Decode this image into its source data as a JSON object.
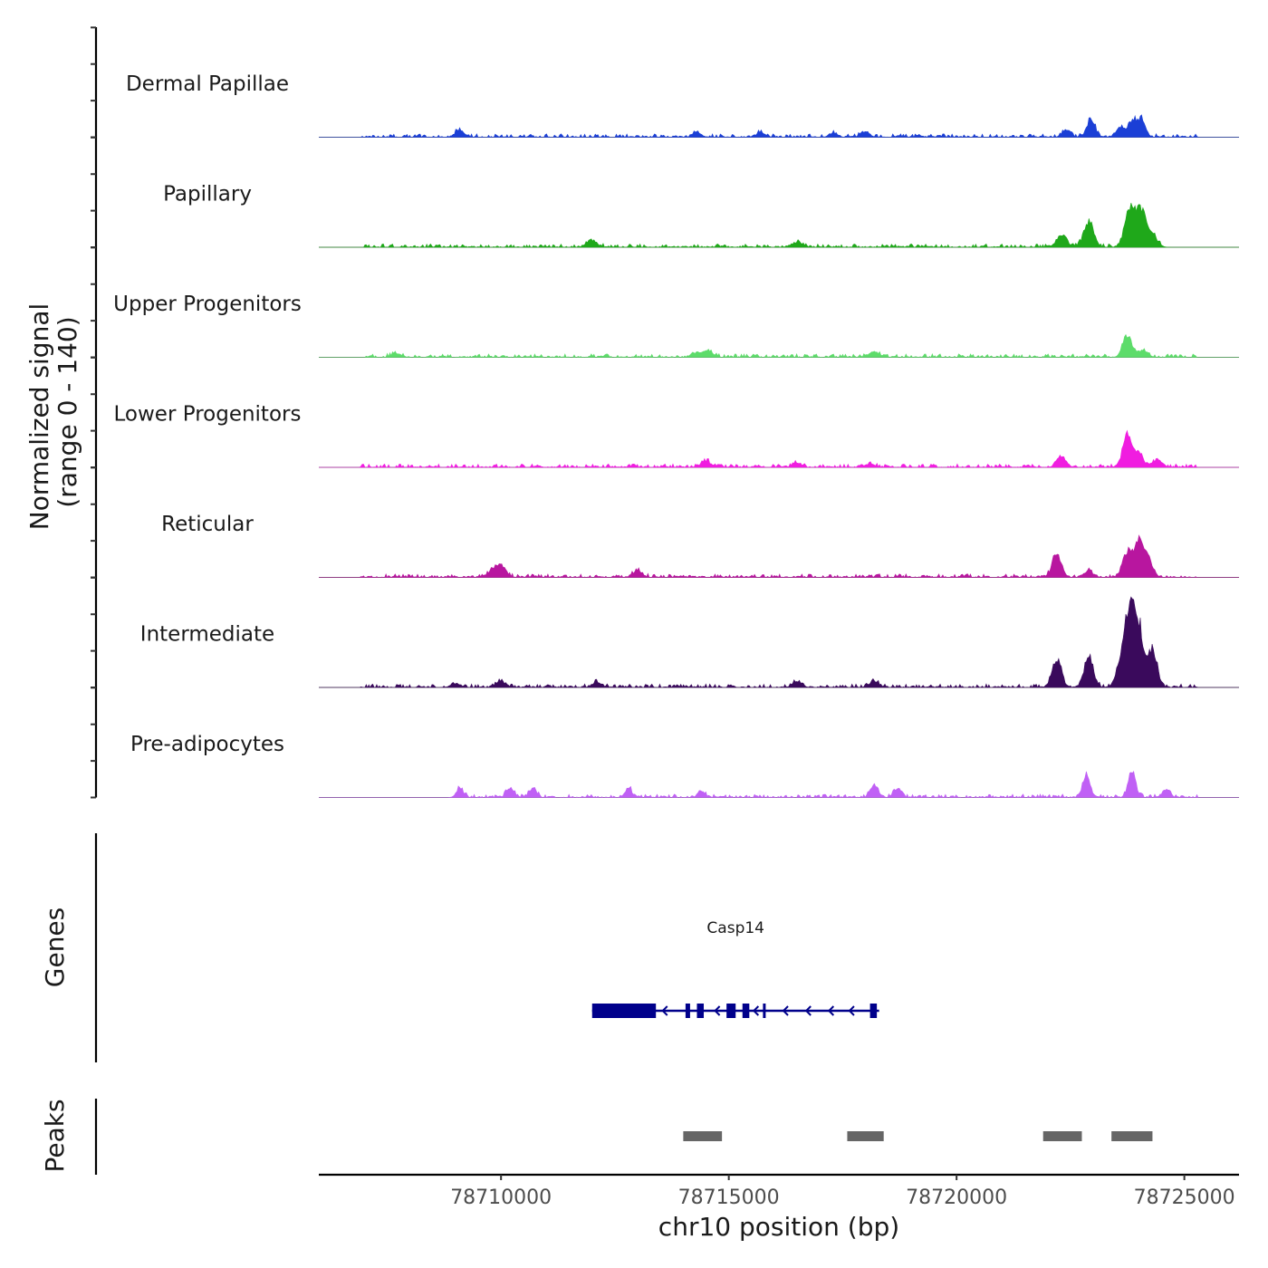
{
  "chart_data": {
    "type": "area",
    "title": "",
    "xlabel": "chr10 position (bp)",
    "ylabel_lines": [
      "Normalized signal",
      "(range 0 - 140)"
    ],
    "genes_label": "Genes",
    "peaks_label": "Peaks",
    "chromosome": "chr10",
    "xlim": [
      78706000,
      78726200
    ],
    "ylim": [
      0,
      140
    ],
    "x_ticks": [
      78710000,
      78715000,
      78720000,
      78725000
    ],
    "x_tick_labels": [
      "78710000",
      "78715000",
      "78720000",
      "78725000"
    ],
    "tracks": [
      {
        "name": "Dermal Papillae",
        "color": "#1b3fd6",
        "background": [
          78706900,
          78725300
        ],
        "peaks": [
          {
            "x": 78709100,
            "h": 12,
            "w": 90
          },
          {
            "x": 78714300,
            "h": 9,
            "w": 90
          },
          {
            "x": 78715700,
            "h": 7,
            "w": 90
          },
          {
            "x": 78717300,
            "h": 7,
            "w": 90
          },
          {
            "x": 78718000,
            "h": 9,
            "w": 90
          },
          {
            "x": 78722400,
            "h": 10,
            "w": 90
          },
          {
            "x": 78722950,
            "h": 28,
            "w": 90
          },
          {
            "x": 78723600,
            "h": 17,
            "w": 90
          },
          {
            "x": 78723850,
            "h": 24,
            "w": 90
          },
          {
            "x": 78724050,
            "h": 30,
            "w": 90
          }
        ]
      },
      {
        "name": "Papillary",
        "color": "#1fa81a",
        "background": [
          78706900,
          78724500
        ],
        "peaks": [
          {
            "x": 78712000,
            "h": 9,
            "w": 110
          },
          {
            "x": 78716500,
            "h": 8,
            "w": 110
          },
          {
            "x": 78722300,
            "h": 18,
            "w": 110
          },
          {
            "x": 78722900,
            "h": 40,
            "w": 110
          },
          {
            "x": 78723800,
            "h": 62,
            "w": 110
          },
          {
            "x": 78724050,
            "h": 58,
            "w": 110
          },
          {
            "x": 78724300,
            "h": 18,
            "w": 110
          }
        ]
      },
      {
        "name": "Upper Progenitors",
        "color": "#5ddc6a",
        "background": [
          78707000,
          78725300
        ],
        "peaks": [
          {
            "x": 78707700,
            "h": 6,
            "w": 100
          },
          {
            "x": 78714300,
            "h": 8,
            "w": 100
          },
          {
            "x": 78714550,
            "h": 10,
            "w": 100
          },
          {
            "x": 78718200,
            "h": 9,
            "w": 100
          },
          {
            "x": 78723750,
            "h": 34,
            "w": 100
          },
          {
            "x": 78724100,
            "h": 10,
            "w": 100
          }
        ]
      },
      {
        "name": "Lower Progenitors",
        "color": "#f01de0",
        "background": [
          78706900,
          78725300
        ],
        "peaks": [
          {
            "x": 78714500,
            "h": 10,
            "w": 100
          },
          {
            "x": 78716500,
            "h": 7,
            "w": 100
          },
          {
            "x": 78718100,
            "h": 6,
            "w": 100
          },
          {
            "x": 78722300,
            "h": 18,
            "w": 100
          },
          {
            "x": 78723750,
            "h": 52,
            "w": 100
          },
          {
            "x": 78724000,
            "h": 22,
            "w": 100
          },
          {
            "x": 78724400,
            "h": 12,
            "w": 100
          }
        ]
      },
      {
        "name": "Reticular",
        "color": "#b8169f",
        "background": [
          78706900,
          78725300
        ],
        "peaks": [
          {
            "x": 78709800,
            "h": 9,
            "w": 100
          },
          {
            "x": 78710000,
            "h": 20,
            "w": 100
          },
          {
            "x": 78713000,
            "h": 11,
            "w": 100
          },
          {
            "x": 78722200,
            "h": 38,
            "w": 100
          },
          {
            "x": 78722900,
            "h": 10,
            "w": 100
          },
          {
            "x": 78723750,
            "h": 42,
            "w": 100
          },
          {
            "x": 78724000,
            "h": 55,
            "w": 100
          },
          {
            "x": 78724200,
            "h": 30,
            "w": 100
          }
        ]
      },
      {
        "name": "Intermediate",
        "color": "#3a0a5c",
        "background": [
          78706900,
          78725300
        ],
        "peaks": [
          {
            "x": 78709000,
            "h": 6,
            "w": 100
          },
          {
            "x": 78710000,
            "h": 10,
            "w": 100
          },
          {
            "x": 78712100,
            "h": 8,
            "w": 100
          },
          {
            "x": 78716500,
            "h": 9,
            "w": 100
          },
          {
            "x": 78718200,
            "h": 10,
            "w": 100
          },
          {
            "x": 78722200,
            "h": 46,
            "w": 100
          },
          {
            "x": 78722900,
            "h": 52,
            "w": 100
          },
          {
            "x": 78723600,
            "h": 40,
            "w": 100
          },
          {
            "x": 78723800,
            "h": 130,
            "w": 100
          },
          {
            "x": 78724000,
            "h": 95,
            "w": 100
          },
          {
            "x": 78724300,
            "h": 62,
            "w": 100
          }
        ]
      },
      {
        "name": "Pre-adipocytes",
        "color": "#c060f5",
        "background": [
          78709000,
          78725300
        ],
        "peaks": [
          {
            "x": 78709100,
            "h": 14,
            "w": 80
          },
          {
            "x": 78710200,
            "h": 16,
            "w": 80
          },
          {
            "x": 78710700,
            "h": 14,
            "w": 80
          },
          {
            "x": 78712800,
            "h": 14,
            "w": 80
          },
          {
            "x": 78714400,
            "h": 10,
            "w": 80
          },
          {
            "x": 78718200,
            "h": 22,
            "w": 80
          },
          {
            "x": 78718700,
            "h": 15,
            "w": 80
          },
          {
            "x": 78722850,
            "h": 40,
            "w": 80
          },
          {
            "x": 78723850,
            "h": 44,
            "w": 80
          },
          {
            "x": 78724600,
            "h": 14,
            "w": 80
          }
        ]
      }
    ],
    "gene": {
      "name": "Casp14",
      "start": 78712000,
      "end": 78718300,
      "strand": "-",
      "color": "#00008b",
      "exons": [
        [
          78712000,
          78713400
        ],
        [
          78714050,
          78714150
        ],
        [
          78714300,
          78714450
        ],
        [
          78714950,
          78715150
        ],
        [
          78715300,
          78715450
        ],
        [
          78715750,
          78715780
        ],
        [
          78718100,
          78718250
        ]
      ]
    },
    "peaks": [
      {
        "start": 78714000,
        "end": 78714850
      },
      {
        "start": 78717600,
        "end": 78718400
      },
      {
        "start": 78721900,
        "end": 78722750
      },
      {
        "start": 78723400,
        "end": 78724300
      }
    ]
  }
}
